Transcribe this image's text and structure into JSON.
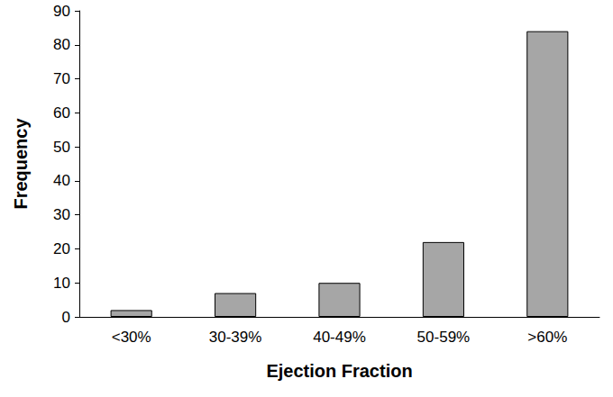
{
  "chart_data": {
    "type": "bar",
    "x_label": "Ejection Fraction",
    "y_label": "Frequency",
    "categories": [
      "<30%",
      "30-39%",
      "40-49%",
      "50-59%",
      ">60%"
    ],
    "values": [
      2,
      7,
      10,
      22,
      84
    ],
    "color": "#a6a6a6",
    "ylim": [
      0,
      90
    ],
    "yticks": [
      0,
      10,
      20,
      30,
      40,
      50,
      60,
      70,
      80,
      90
    ],
    "grid": false
  }
}
